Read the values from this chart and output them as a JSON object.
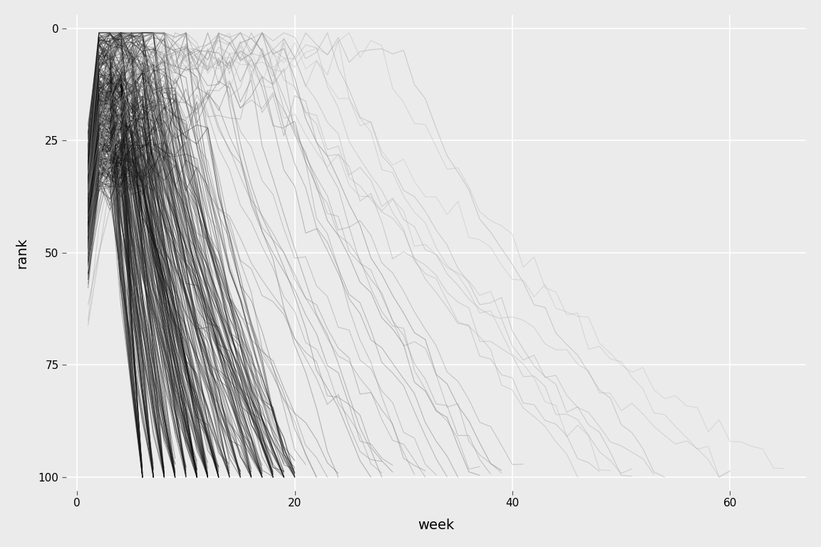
{
  "title": "",
  "xlabel": "week",
  "ylabel": "rank",
  "xlim": [
    -1,
    67
  ],
  "ylim": [
    103,
    -3
  ],
  "x_ticks": [
    0,
    20,
    40,
    60
  ],
  "y_ticks": [
    0,
    25,
    50,
    75,
    100
  ],
  "bg_color": "#EBEBEB",
  "line_alpha": 0.4,
  "line_width": 0.75,
  "grid_color": "white",
  "seed": 42,
  "n_short_songs": 300,
  "n_medium_songs": 25,
  "n_long_songs": 10
}
